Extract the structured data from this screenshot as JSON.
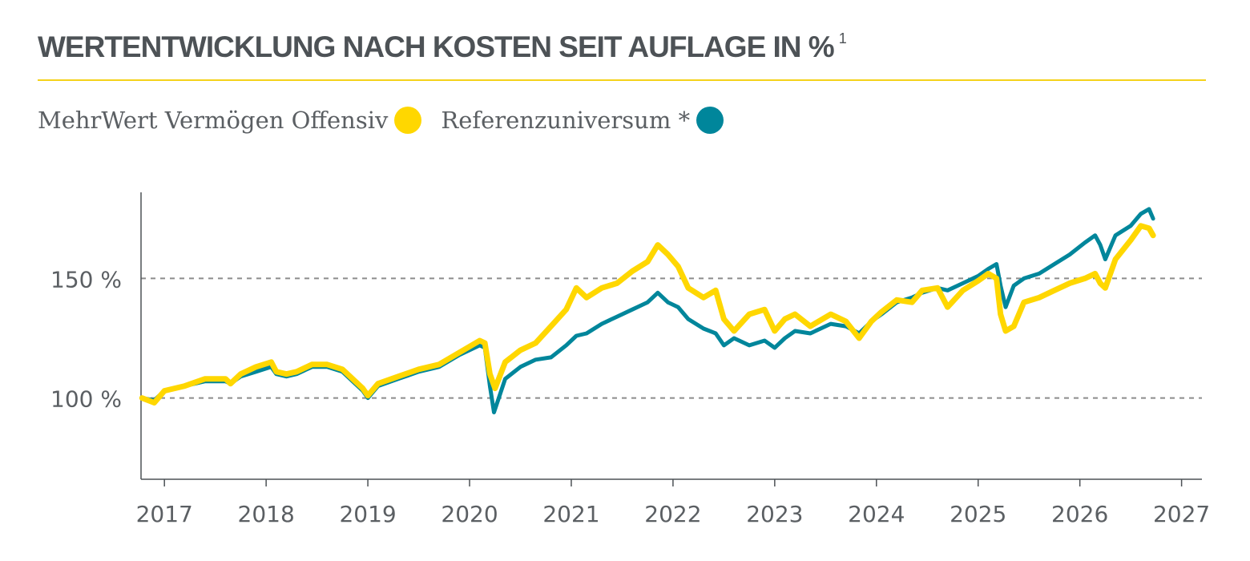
{
  "header": {
    "title": "WERTENTWICKLUNG NACH KOSTEN SEIT AUFLAGE IN %",
    "footnote": "1"
  },
  "colors": {
    "accent_rule": "#f5d21a",
    "fund": "#ffd700",
    "benchmark": "#00869b",
    "grid": "#8c8c8c",
    "axis": "#4d5256",
    "text": "#4d5256"
  },
  "chart_data": {
    "type": "line",
    "title": "WERTENTWICKLUNG NACH KOSTEN SEIT AUFLAGE IN %",
    "xlabel": "",
    "ylabel": "",
    "xlim": [
      2016.77,
      2027.2
    ],
    "ylim": [
      66,
      186
    ],
    "grid": {
      "horizontal_dashed_at": [
        100,
        150
      ]
    },
    "legend_position": "top-left",
    "x_ticks": [
      {
        "value": 2017,
        "label": "2017"
      },
      {
        "value": 2018,
        "label": "2018"
      },
      {
        "value": 2019,
        "label": "2019"
      },
      {
        "value": 2020,
        "label": "2020"
      },
      {
        "value": 2021,
        "label": "2021"
      },
      {
        "value": 2022,
        "label": "2022"
      },
      {
        "value": 2023,
        "label": "2023"
      },
      {
        "value": 2024,
        "label": "2024"
      },
      {
        "value": 2025,
        "label": "2025"
      },
      {
        "value": 2026,
        "label": "2026"
      },
      {
        "value": 2027,
        "label": "2027"
      }
    ],
    "y_ticks": [
      {
        "value": 100,
        "label": "100 %"
      },
      {
        "value": 150,
        "label": "150 %"
      }
    ],
    "series": [
      {
        "name": "MehrWert Vermögen Offensiv",
        "color": "#ffd700",
        "points": [
          [
            2016.78,
            100
          ],
          [
            2016.9,
            98
          ],
          [
            2017.0,
            103
          ],
          [
            2017.2,
            105
          ],
          [
            2017.4,
            108
          ],
          [
            2017.6,
            108
          ],
          [
            2017.65,
            106
          ],
          [
            2017.75,
            110
          ],
          [
            2017.9,
            113
          ],
          [
            2018.05,
            115
          ],
          [
            2018.1,
            111
          ],
          [
            2018.2,
            110
          ],
          [
            2018.3,
            111
          ],
          [
            2018.45,
            114
          ],
          [
            2018.6,
            114
          ],
          [
            2018.75,
            112
          ],
          [
            2018.85,
            108
          ],
          [
            2018.95,
            104
          ],
          [
            2019.0,
            101
          ],
          [
            2019.1,
            106
          ],
          [
            2019.3,
            109
          ],
          [
            2019.5,
            112
          ],
          [
            2019.7,
            114
          ],
          [
            2019.9,
            119
          ],
          [
            2020.1,
            124
          ],
          [
            2020.15,
            123
          ],
          [
            2020.2,
            110
          ],
          [
            2020.25,
            104
          ],
          [
            2020.35,
            115
          ],
          [
            2020.5,
            120
          ],
          [
            2020.65,
            123
          ],
          [
            2020.8,
            130
          ],
          [
            2020.95,
            137
          ],
          [
            2021.05,
            146
          ],
          [
            2021.15,
            142
          ],
          [
            2021.3,
            146
          ],
          [
            2021.45,
            148
          ],
          [
            2021.6,
            153
          ],
          [
            2021.75,
            157
          ],
          [
            2021.85,
            164
          ],
          [
            2021.95,
            160
          ],
          [
            2022.05,
            155
          ],
          [
            2022.15,
            146
          ],
          [
            2022.3,
            142
          ],
          [
            2022.42,
            145
          ],
          [
            2022.5,
            133
          ],
          [
            2022.6,
            128
          ],
          [
            2022.75,
            135
          ],
          [
            2022.9,
            137
          ],
          [
            2023.0,
            128
          ],
          [
            2023.1,
            133
          ],
          [
            2023.2,
            135
          ],
          [
            2023.35,
            130
          ],
          [
            2023.55,
            135
          ],
          [
            2023.7,
            132
          ],
          [
            2023.83,
            125
          ],
          [
            2023.95,
            132
          ],
          [
            2024.05,
            136
          ],
          [
            2024.2,
            141
          ],
          [
            2024.35,
            140
          ],
          [
            2024.45,
            145
          ],
          [
            2024.6,
            146
          ],
          [
            2024.7,
            138
          ],
          [
            2024.85,
            145
          ],
          [
            2025.0,
            149
          ],
          [
            2025.1,
            152
          ],
          [
            2025.18,
            150
          ],
          [
            2025.22,
            135
          ],
          [
            2025.27,
            128
          ],
          [
            2025.35,
            130
          ],
          [
            2025.45,
            140
          ],
          [
            2025.6,
            142
          ],
          [
            2025.75,
            145
          ],
          [
            2025.9,
            148
          ],
          [
            2026.05,
            150
          ],
          [
            2026.15,
            152
          ],
          [
            2026.2,
            148
          ],
          [
            2026.25,
            146
          ],
          [
            2026.35,
            158
          ],
          [
            2026.5,
            166
          ],
          [
            2026.6,
            172
          ],
          [
            2026.68,
            171
          ],
          [
            2026.72,
            168
          ]
        ]
      },
      {
        "name": "Referenzuniversum *",
        "color": "#00869b",
        "points": [
          [
            2016.78,
            100
          ],
          [
            2016.9,
            99
          ],
          [
            2017.0,
            103
          ],
          [
            2017.2,
            105
          ],
          [
            2017.4,
            107
          ],
          [
            2017.6,
            107
          ],
          [
            2017.65,
            106
          ],
          [
            2017.75,
            109
          ],
          [
            2017.9,
            111
          ],
          [
            2018.05,
            113
          ],
          [
            2018.1,
            110
          ],
          [
            2018.2,
            109
          ],
          [
            2018.3,
            110
          ],
          [
            2018.45,
            113
          ],
          [
            2018.6,
            113
          ],
          [
            2018.75,
            111
          ],
          [
            2018.85,
            107
          ],
          [
            2018.95,
            103
          ],
          [
            2019.0,
            100
          ],
          [
            2019.1,
            105
          ],
          [
            2019.3,
            108
          ],
          [
            2019.5,
            111
          ],
          [
            2019.7,
            113
          ],
          [
            2019.9,
            118
          ],
          [
            2020.1,
            122
          ],
          [
            2020.15,
            121
          ],
          [
            2020.2,
            105
          ],
          [
            2020.24,
            94
          ],
          [
            2020.35,
            108
          ],
          [
            2020.5,
            113
          ],
          [
            2020.65,
            116
          ],
          [
            2020.8,
            117
          ],
          [
            2020.95,
            122
          ],
          [
            2021.05,
            126
          ],
          [
            2021.15,
            127
          ],
          [
            2021.3,
            131
          ],
          [
            2021.45,
            134
          ],
          [
            2021.6,
            137
          ],
          [
            2021.75,
            140
          ],
          [
            2021.85,
            144
          ],
          [
            2021.95,
            140
          ],
          [
            2022.05,
            138
          ],
          [
            2022.15,
            133
          ],
          [
            2022.3,
            129
          ],
          [
            2022.42,
            127
          ],
          [
            2022.5,
            122
          ],
          [
            2022.6,
            125
          ],
          [
            2022.75,
            122
          ],
          [
            2022.9,
            124
          ],
          [
            2023.0,
            121
          ],
          [
            2023.1,
            125
          ],
          [
            2023.2,
            128
          ],
          [
            2023.35,
            127
          ],
          [
            2023.55,
            131
          ],
          [
            2023.7,
            130
          ],
          [
            2023.83,
            127
          ],
          [
            2023.95,
            132
          ],
          [
            2024.05,
            135
          ],
          [
            2024.2,
            140
          ],
          [
            2024.35,
            142
          ],
          [
            2024.45,
            144
          ],
          [
            2024.6,
            146
          ],
          [
            2024.7,
            145
          ],
          [
            2024.85,
            148
          ],
          [
            2025.0,
            151
          ],
          [
            2025.1,
            154
          ],
          [
            2025.18,
            156
          ],
          [
            2025.22,
            147
          ],
          [
            2025.27,
            138
          ],
          [
            2025.35,
            147
          ],
          [
            2025.45,
            150
          ],
          [
            2025.6,
            152
          ],
          [
            2025.75,
            156
          ],
          [
            2025.9,
            160
          ],
          [
            2026.05,
            165
          ],
          [
            2026.15,
            168
          ],
          [
            2026.2,
            164
          ],
          [
            2026.25,
            158
          ],
          [
            2026.35,
            168
          ],
          [
            2026.5,
            172
          ],
          [
            2026.6,
            177
          ],
          [
            2026.68,
            179
          ],
          [
            2026.72,
            175
          ]
        ]
      }
    ]
  }
}
